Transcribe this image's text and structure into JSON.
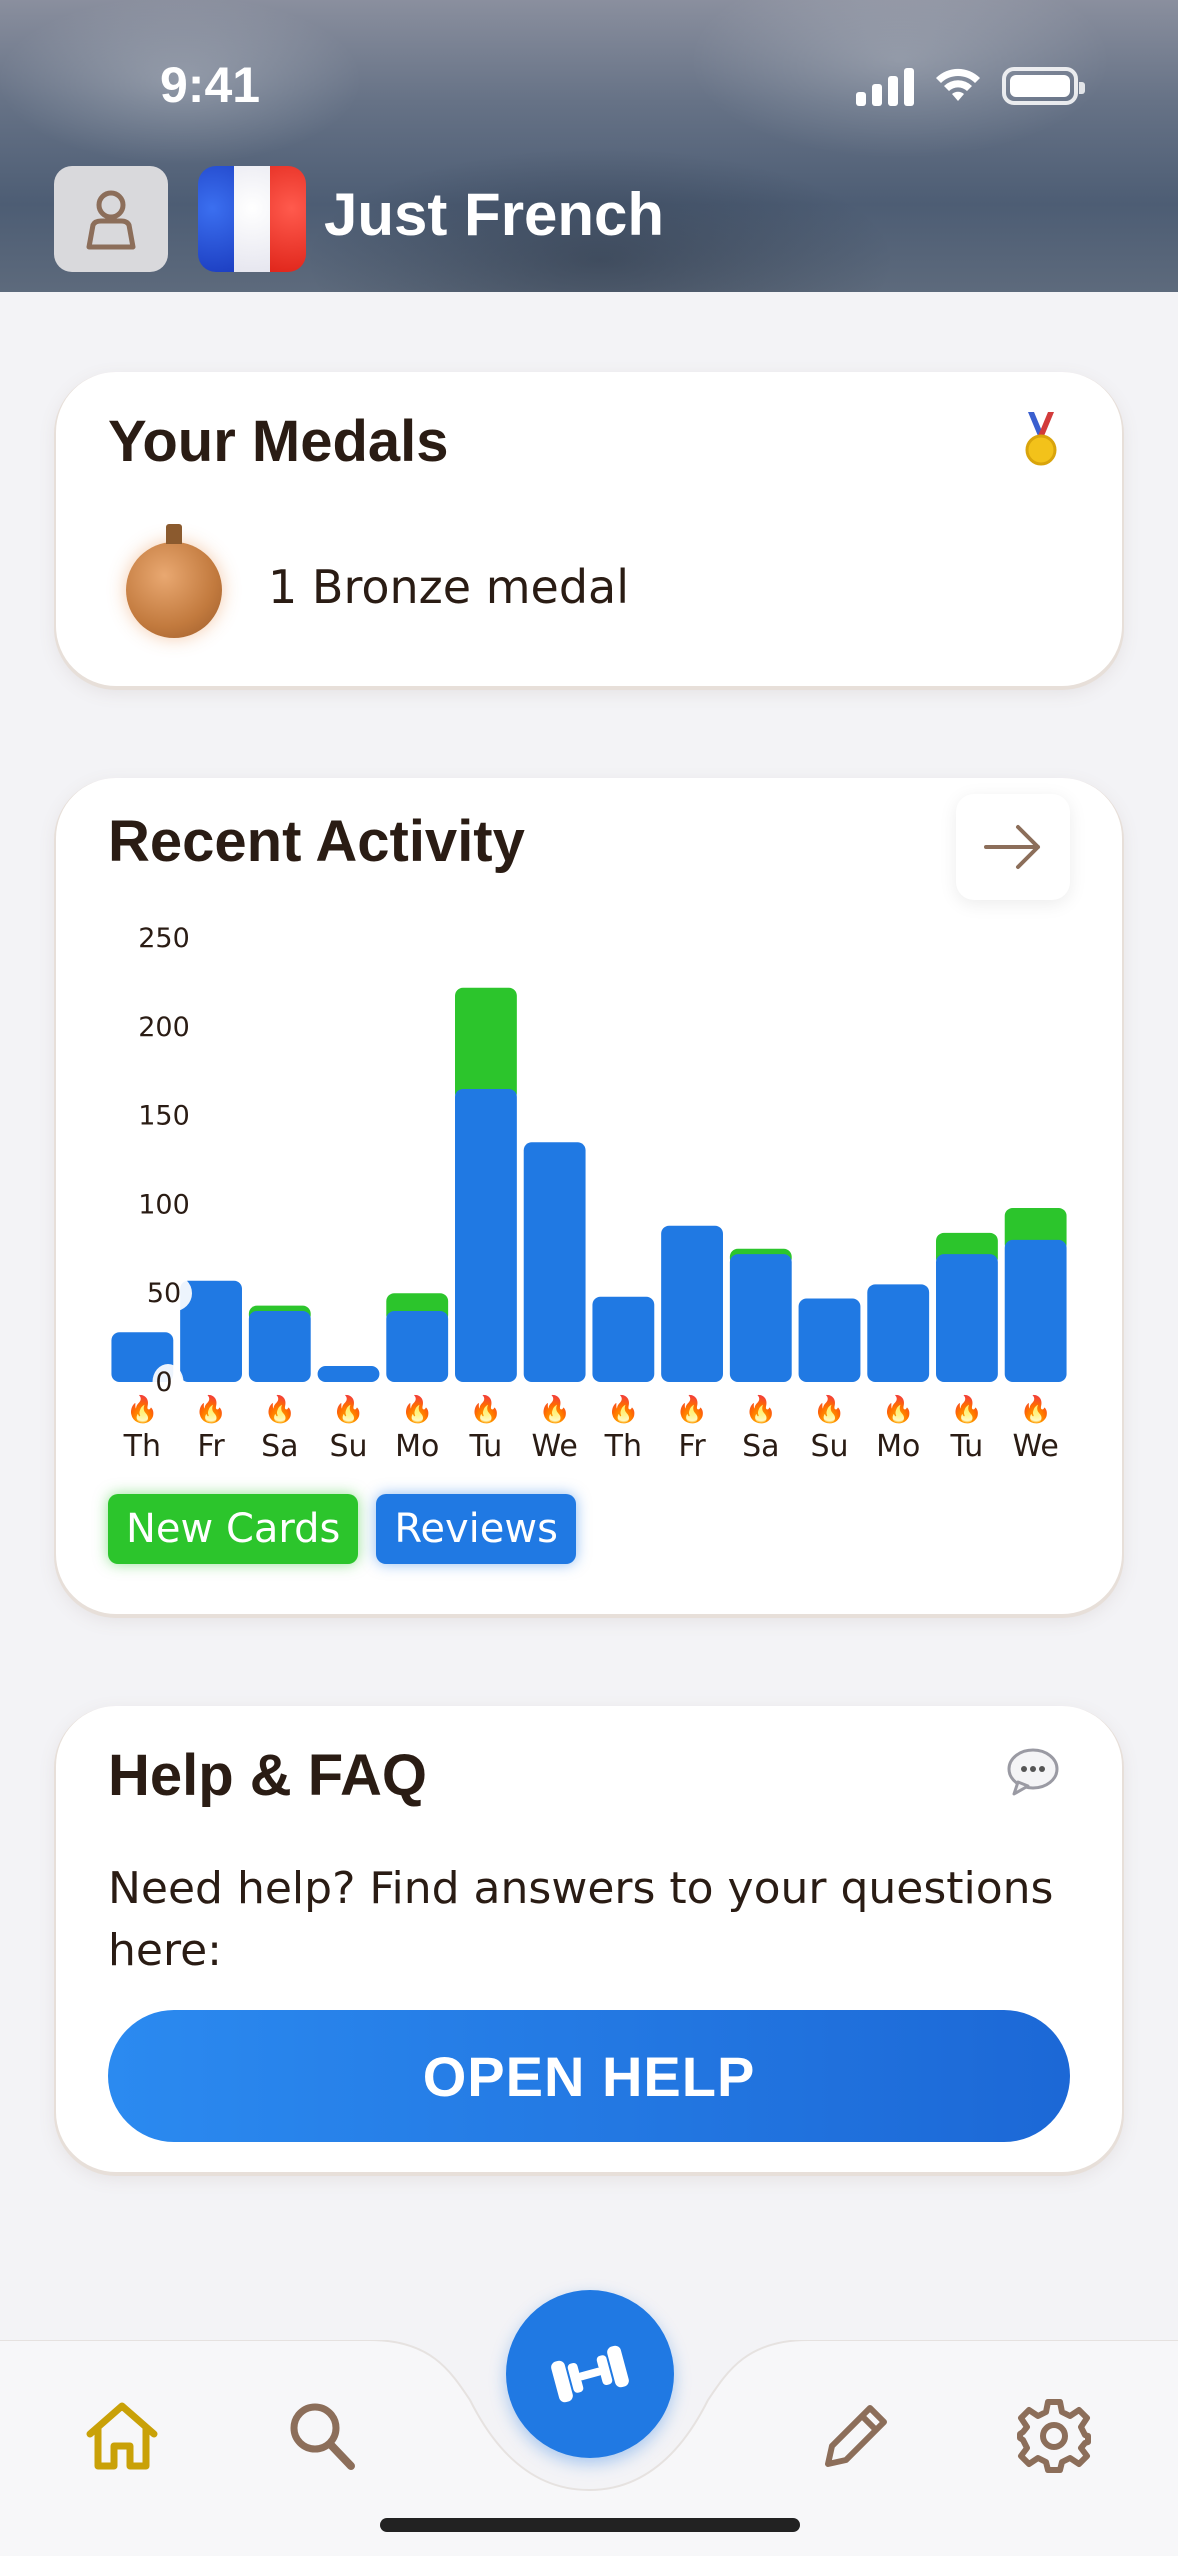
{
  "status_bar": {
    "time": "9:41"
  },
  "header": {
    "title": "Just French"
  },
  "medals_card": {
    "title": "Your Medals",
    "medal_text": "1 Bronze medal",
    "icon": "medal-icon"
  },
  "activity_card": {
    "title": "Recent Activity",
    "legend": {
      "new_cards": "New Cards",
      "reviews": "Reviews"
    }
  },
  "chart_data": {
    "type": "bar",
    "stacked": true,
    "categories": [
      "Th",
      "Fr",
      "Sa",
      "Su",
      "Mo",
      "Tu",
      "We",
      "Th",
      "Fr",
      "Sa",
      "Su",
      "Mo",
      "Tu",
      "We"
    ],
    "series": [
      {
        "name": "Reviews",
        "color": "#2079e3",
        "values": [
          28,
          57,
          40,
          9,
          40,
          165,
          135,
          48,
          88,
          72,
          47,
          55,
          72,
          80
        ]
      },
      {
        "name": "New Cards",
        "color": "#2cc52c",
        "values": [
          0,
          0,
          3,
          0,
          10,
          57,
          0,
          0,
          0,
          3,
          0,
          0,
          12,
          18
        ]
      }
    ],
    "ylim": [
      0,
      250
    ],
    "yticks": [
      0,
      50,
      100,
      150,
      200,
      250
    ],
    "marker": "🔥"
  },
  "help_card": {
    "title": "Help & FAQ",
    "text": "Need help? Find answers to your questions here:",
    "button": "OPEN HELP"
  },
  "tab_bar": {
    "items": [
      "home-icon",
      "search-icon",
      "dumbbell-icon",
      "pencil-icon",
      "gear-icon"
    ],
    "active_color": "#c9a108",
    "icon_color": "#8c6e5a"
  }
}
